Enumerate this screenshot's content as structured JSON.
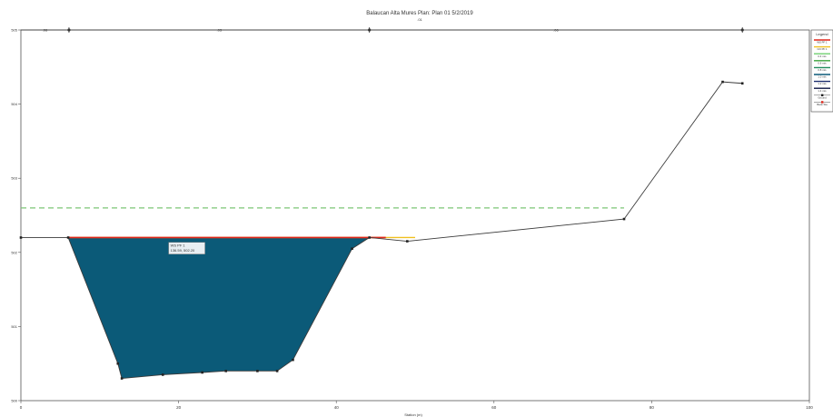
{
  "chart_data": {
    "type": "line",
    "title": "Balaucan Alta Mures     Plan: Plan 01    5/2/2019",
    "subtitle": ".01",
    "xlabel": "Station (m)",
    "ylabel": "",
    "xlim": [
      0,
      100
    ],
    "ylim": [
      500,
      505
    ],
    "x_ticks": [
      0,
      20,
      40,
      60,
      80,
      100
    ],
    "y_ticks": [
      500,
      501,
      502,
      503,
      504,
      505
    ],
    "grid": false,
    "legend_position": "top-right",
    "legend": {
      "title": "Legend",
      "entries": [
        "WS PF 1",
        "Crit PF 1",
        "0.4 m/s",
        "0.6 m/s",
        "0.8 m/s",
        "1.0 m/s",
        "1.2 m/s",
        "1.4 m/s",
        "Ground",
        "Bank Sta"
      ]
    },
    "mannings": {
      "values": [
        ".06",
        ".03",
        ".06"
      ],
      "bank_stations": [
        6.1,
        44.2,
        91.5
      ]
    },
    "ground": {
      "x": [
        0,
        6,
        12.3,
        12.8,
        18,
        23,
        26,
        30,
        32.5,
        34.5,
        42,
        44.2,
        49,
        76.5,
        89,
        91.5
      ],
      "y": [
        502.2,
        502.2,
        500.5,
        500.3,
        500.35,
        500.38,
        500.4,
        500.4,
        500.4,
        500.55,
        502.05,
        502.2,
        502.15,
        502.45,
        504.3,
        504.28
      ]
    },
    "water_surface": {
      "name": "WS PF 1",
      "elevation": 502.2,
      "x_start": 6,
      "x_end": 44.2
    },
    "critical_ws": {
      "name": "Crit PF 1",
      "x": [
        6,
        50
      ],
      "y": [
        502.2,
        502.2
      ]
    },
    "energy_grade": {
      "x": [
        0,
        76.5
      ],
      "y": [
        502.6,
        502.6
      ]
    },
    "annotation": {
      "label": "WS PF 1",
      "value": "136.59, 502.20",
      "x": 20,
      "y": 502.05
    }
  },
  "colors": {
    "water": "#0b5a78",
    "water_surface": "#e0261b",
    "critical": "#f0c020",
    "ground": "#3a3a3a",
    "energy_grade": "#7cc576"
  }
}
